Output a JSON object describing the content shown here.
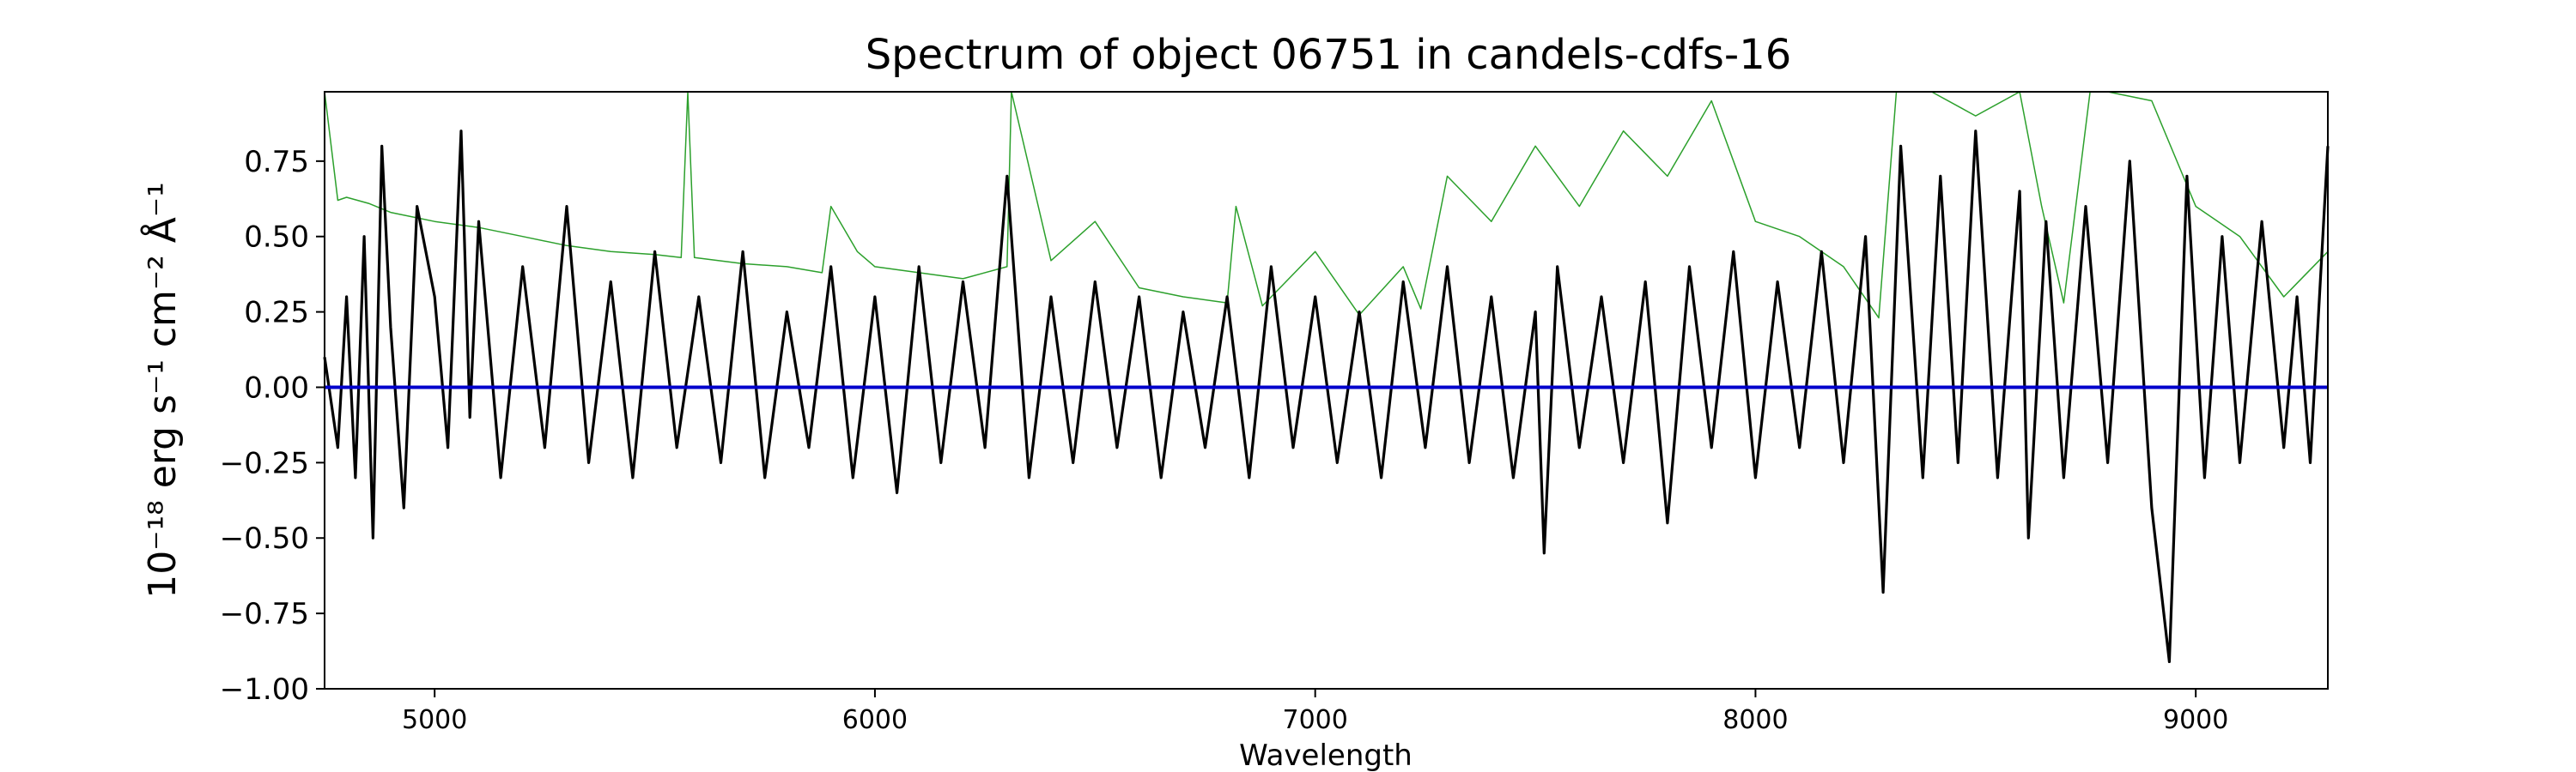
{
  "chart_data": {
    "type": "line",
    "title": "Spectrum of object 06751 in candels-cdfs-16",
    "xlabel": "Wavelength",
    "ylabel": "10⁻¹⁸ erg s⁻¹ cm⁻² Å⁻¹",
    "xlim": [
      4750,
      9300
    ],
    "ylim": [
      -1.0,
      0.98
    ],
    "x_ticks": [
      5000,
      6000,
      7000,
      8000,
      9000
    ],
    "y_ticks": [
      -1.0,
      -0.75,
      -0.5,
      -0.25,
      0.0,
      0.25,
      0.5,
      0.75
    ],
    "x_tick_labels": [
      "5000",
      "6000",
      "7000",
      "8000",
      "9000"
    ],
    "y_tick_labels": [
      "−1.00",
      "−0.75",
      "−0.50",
      "−0.25",
      "0.00",
      "0.25",
      "0.50",
      "0.75"
    ],
    "grid": false,
    "legend": "none",
    "series": [
      {
        "color": "#2ca02c",
        "style": "thin line",
        "x": [
          4750,
          4780,
          4800,
          4850,
          4900,
          5000,
          5100,
          5200,
          5300,
          5400,
          5500,
          5560,
          5575,
          5590,
          5700,
          5800,
          5880,
          5900,
          5960,
          6000,
          6100,
          6200,
          6300,
          6310,
          6400,
          6500,
          6600,
          6700,
          6800,
          6820,
          6880,
          7000,
          7100,
          7200,
          7240,
          7300,
          7400,
          7500,
          7600,
          7700,
          7800,
          7900,
          8000,
          8100,
          8200,
          8280,
          8320,
          8400,
          8500,
          8600,
          8650,
          8700,
          8760,
          8800,
          8900,
          9000,
          9100,
          9200,
          9300
        ],
        "y": [
          0.98,
          0.62,
          0.63,
          0.61,
          0.58,
          0.55,
          0.53,
          0.5,
          0.47,
          0.45,
          0.44,
          0.43,
          0.98,
          0.43,
          0.41,
          0.4,
          0.38,
          0.6,
          0.45,
          0.4,
          0.38,
          0.36,
          0.4,
          0.98,
          0.42,
          0.55,
          0.33,
          0.3,
          0.28,
          0.6,
          0.27,
          0.45,
          0.24,
          0.4,
          0.26,
          0.7,
          0.55,
          0.8,
          0.6,
          0.85,
          0.7,
          0.95,
          0.55,
          0.5,
          0.4,
          0.23,
          0.98,
          0.98,
          0.9,
          0.98,
          0.6,
          0.28,
          0.98,
          0.98,
          0.95,
          0.6,
          0.5,
          0.3,
          0.45
        ]
      },
      {
        "color": "#000000",
        "style": "noisy line",
        "x": [
          4750,
          4780,
          4800,
          4820,
          4840,
          4860,
          4880,
          4900,
          4930,
          4960,
          5000,
          5030,
          5060,
          5080,
          5100,
          5150,
          5200,
          5250,
          5300,
          5350,
          5400,
          5450,
          5500,
          5550,
          5600,
          5650,
          5700,
          5750,
          5800,
          5850,
          5900,
          5950,
          6000,
          6050,
          6100,
          6150,
          6200,
          6250,
          6300,
          6350,
          6400,
          6450,
          6500,
          6550,
          6600,
          6650,
          6700,
          6750,
          6800,
          6850,
          6900,
          6950,
          7000,
          7050,
          7100,
          7150,
          7200,
          7250,
          7300,
          7350,
          7400,
          7450,
          7500,
          7520,
          7550,
          7600,
          7650,
          7700,
          7750,
          7800,
          7850,
          7900,
          7950,
          8000,
          8050,
          8100,
          8150,
          8200,
          8250,
          8290,
          8330,
          8380,
          8420,
          8460,
          8500,
          8550,
          8600,
          8620,
          8660,
          8700,
          8750,
          8800,
          8850,
          8900,
          8940,
          8980,
          9020,
          9060,
          9100,
          9150,
          9200,
          9230,
          9260,
          9300
        ],
        "y": [
          0.1,
          -0.2,
          0.3,
          -0.3,
          0.5,
          -0.5,
          0.8,
          0.2,
          -0.4,
          0.6,
          0.3,
          -0.2,
          0.85,
          -0.1,
          0.55,
          -0.3,
          0.4,
          -0.2,
          0.6,
          -0.25,
          0.35,
          -0.3,
          0.45,
          -0.2,
          0.3,
          -0.25,
          0.45,
          -0.3,
          0.25,
          -0.2,
          0.4,
          -0.3,
          0.3,
          -0.35,
          0.4,
          -0.25,
          0.35,
          -0.2,
          0.7,
          -0.3,
          0.3,
          -0.25,
          0.35,
          -0.2,
          0.3,
          -0.3,
          0.25,
          -0.2,
          0.3,
          -0.3,
          0.4,
          -0.2,
          0.3,
          -0.25,
          0.25,
          -0.3,
          0.35,
          -0.2,
          0.4,
          -0.25,
          0.3,
          -0.3,
          0.25,
          -0.55,
          0.4,
          -0.2,
          0.3,
          -0.25,
          0.35,
          -0.45,
          0.4,
          -0.2,
          0.45,
          -0.3,
          0.35,
          -0.2,
          0.45,
          -0.25,
          0.5,
          -0.68,
          0.8,
          -0.3,
          0.7,
          -0.25,
          0.85,
          -0.3,
          0.65,
          -0.5,
          0.55,
          -0.3,
          0.6,
          -0.25,
          0.75,
          -0.4,
          -0.91,
          0.7,
          -0.3,
          0.5,
          -0.25,
          0.55,
          -0.2,
          0.3,
          -0.25,
          0.8
        ]
      },
      {
        "color": "#0000cc",
        "style": "zero line",
        "x": [
          4750,
          9300
        ],
        "y": [
          0.0,
          0.0
        ]
      }
    ]
  }
}
